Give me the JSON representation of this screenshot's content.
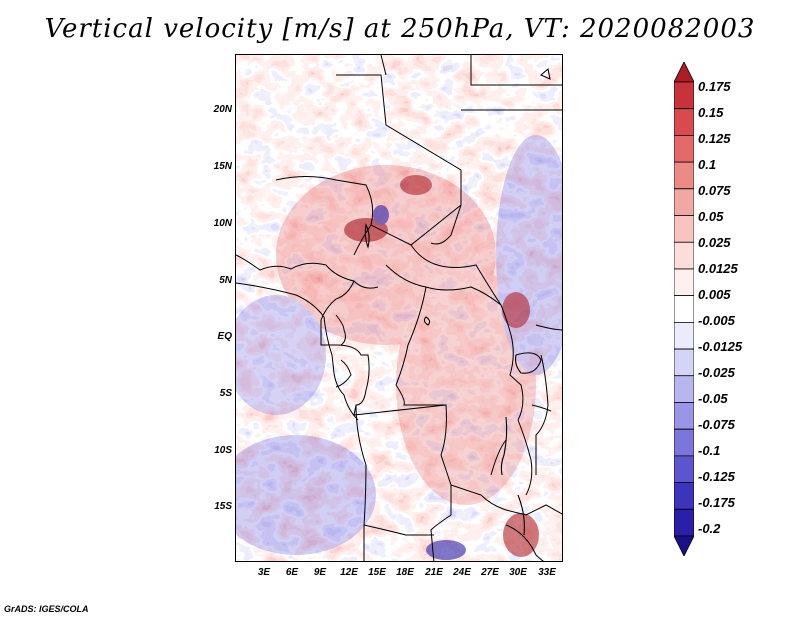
{
  "title": "Vertical velocity [m/s] at 250hPa, VT: 2020082003",
  "credit": "GrADS: IGES/COLA",
  "lat_labels": [
    "20N",
    "15N",
    "10N",
    "5N",
    "EQ",
    "5S",
    "10S",
    "15S"
  ],
  "lon_labels": [
    "3E",
    "6E",
    "9E",
    "12E",
    "15E",
    "18E",
    "21E",
    "24E",
    "27E",
    "30E",
    "33E"
  ],
  "colorbar": {
    "labels": [
      "0.175",
      "0.15",
      "0.125",
      "0.1",
      "0.075",
      "0.05",
      "0.025",
      "0.0125",
      "0.005",
      "-0.005",
      "-0.0125",
      "-0.025",
      "-0.05",
      "-0.075",
      "-0.1",
      "-0.125",
      "-0.175",
      "-0.2"
    ],
    "colors": [
      "#b01c24",
      "#c8323a",
      "#d84a4e",
      "#e46a6a",
      "#ec8a86",
      "#f2a8a2",
      "#f7c4bf",
      "#fbdedb",
      "#fdf0ee",
      "#ffffff",
      "#ecebfb",
      "#d5d3f6",
      "#b8b5ef",
      "#9a96e6",
      "#7c76dc",
      "#5c55cf",
      "#3c34bd",
      "#2a1fa6",
      "#1c1088"
    ]
  },
  "map_extent": {
    "lon_min": 0,
    "lon_max": 35,
    "lat_min": -20,
    "lat_max": 25
  }
}
